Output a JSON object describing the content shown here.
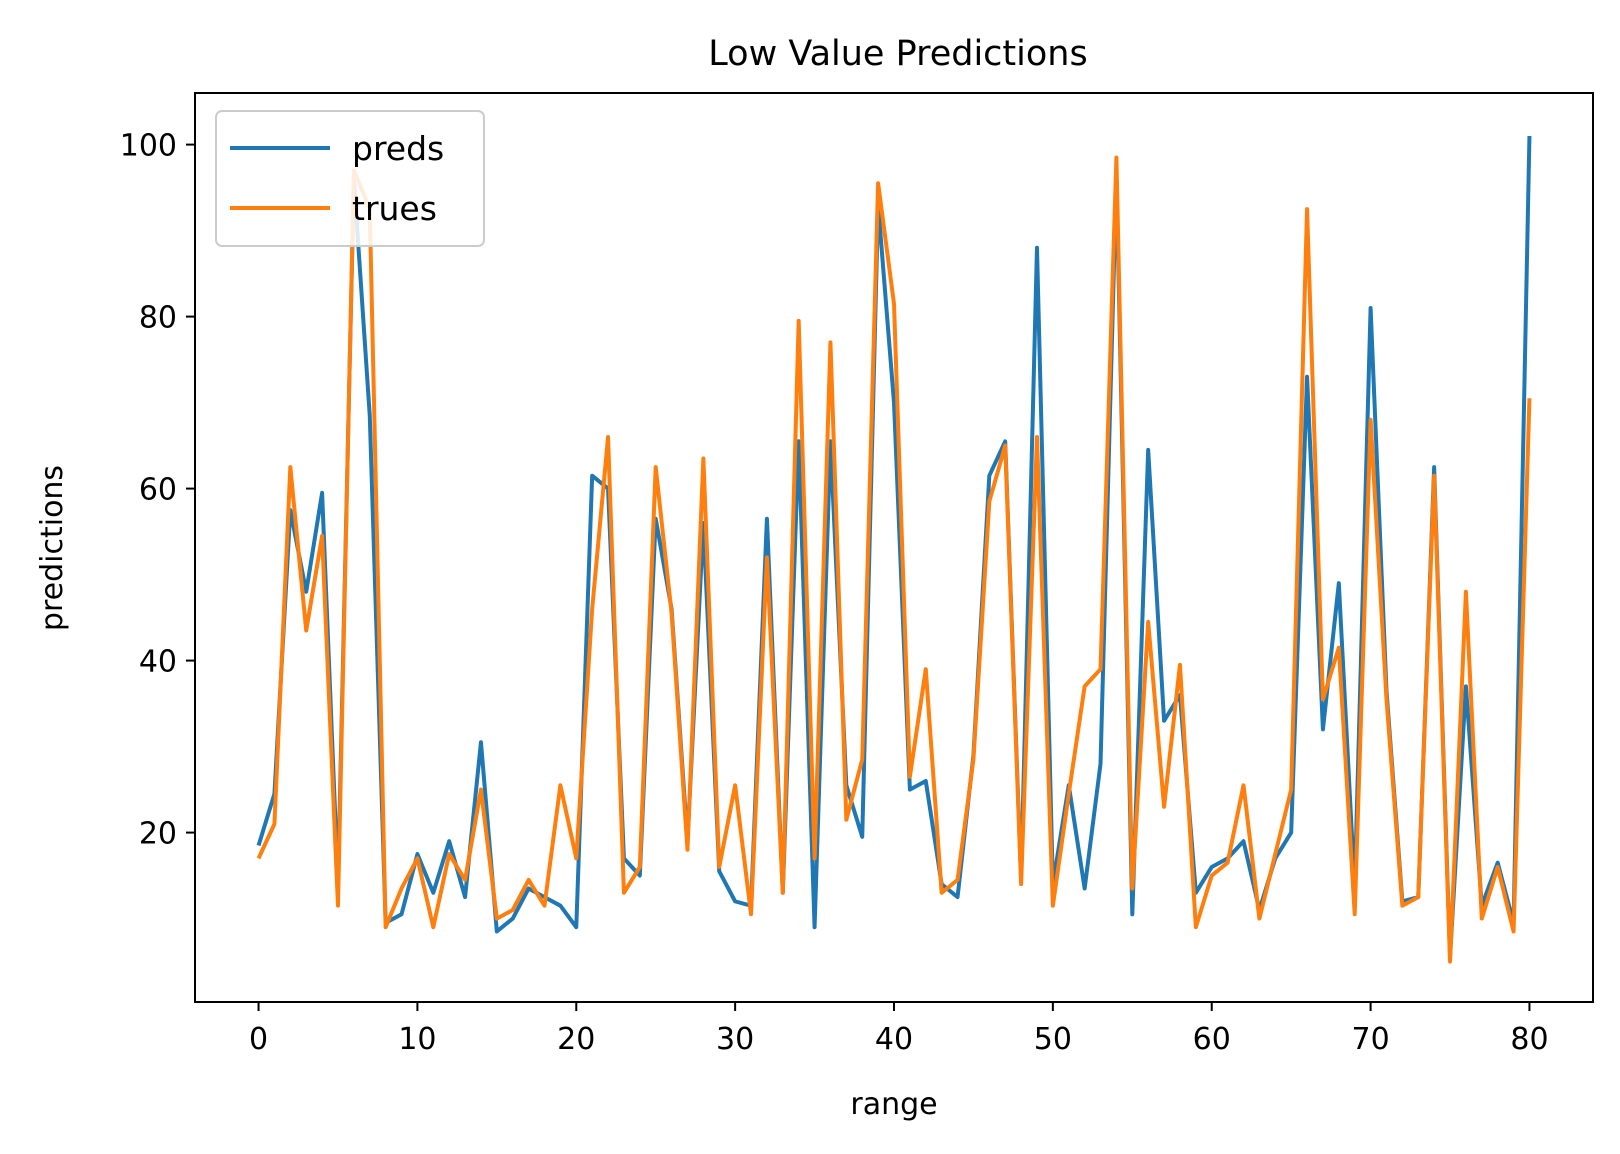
{
  "chart_data": {
    "type": "line",
    "title": "Low Value Predictions",
    "xlabel": "range",
    "ylabel": "predictions",
    "xlim": [
      -4,
      84
    ],
    "ylim": [
      0.3,
      106
    ],
    "x_ticks": [
      0,
      10,
      20,
      30,
      40,
      50,
      60,
      70,
      80
    ],
    "y_ticks": [
      20,
      40,
      60,
      80,
      100
    ],
    "grid": false,
    "legend": "top-left",
    "series": [
      {
        "name": "preds",
        "color": "#1f77b4",
        "values": [
          18.5,
          24.5,
          57.5,
          48.0,
          59.5,
          14.0,
          96.0,
          68.5,
          9.5,
          10.5,
          17.5,
          13.0,
          19.0,
          12.5,
          30.5,
          8.5,
          10.0,
          13.5,
          12.5,
          11.5,
          9.0,
          61.5,
          60.0,
          17.0,
          15.0,
          56.5,
          46.0,
          19.0,
          56.0,
          15.5,
          12.0,
          11.5,
          56.5,
          13.0,
          65.5,
          9.0,
          65.5,
          25.5,
          19.5,
          93.0,
          70.0,
          25.0,
          26.0,
          14.0,
          12.5,
          29.0,
          61.5,
          65.5,
          14.5,
          88.0,
          14.0,
          25.5,
          13.5,
          28.0,
          96.5,
          10.5,
          64.5,
          33.0,
          36.0,
          13.0,
          16.0,
          17.0,
          19.0,
          11.0,
          17.0,
          20.0,
          73.0,
          32.0,
          49.0,
          13.5,
          81.0,
          36.5,
          12.0,
          12.5,
          62.5,
          5.5,
          37.0,
          11.5,
          16.5,
          9.5,
          101.0
        ]
      },
      {
        "name": "trues",
        "color": "#ff7f0e",
        "values": [
          17.0,
          21.0,
          62.5,
          43.5,
          54.5,
          11.5,
          97.0,
          92.5,
          9.0,
          13.5,
          17.0,
          9.0,
          17.5,
          14.5,
          25.0,
          10.0,
          11.0,
          14.5,
          11.5,
          25.5,
          17.0,
          46.0,
          66.0,
          13.0,
          16.0,
          62.5,
          45.5,
          18.0,
          63.5,
          16.0,
          25.5,
          10.5,
          52.0,
          13.0,
          79.5,
          17.0,
          77.0,
          21.5,
          28.5,
          95.5,
          81.5,
          26.5,
          39.0,
          13.0,
          14.5,
          28.5,
          58.5,
          65.0,
          14.0,
          66.0,
          11.5,
          24.5,
          37.0,
          39.0,
          98.5,
          13.5,
          44.5,
          23.0,
          39.5,
          9.0,
          15.0,
          16.5,
          25.5,
          10.0,
          17.5,
          25.0,
          92.5,
          35.5,
          41.5,
          10.5,
          68.0,
          35.5,
          11.5,
          12.5,
          61.5,
          5.0,
          48.0,
          10.0,
          16.0,
          8.5,
          70.5
        ]
      }
    ]
  }
}
